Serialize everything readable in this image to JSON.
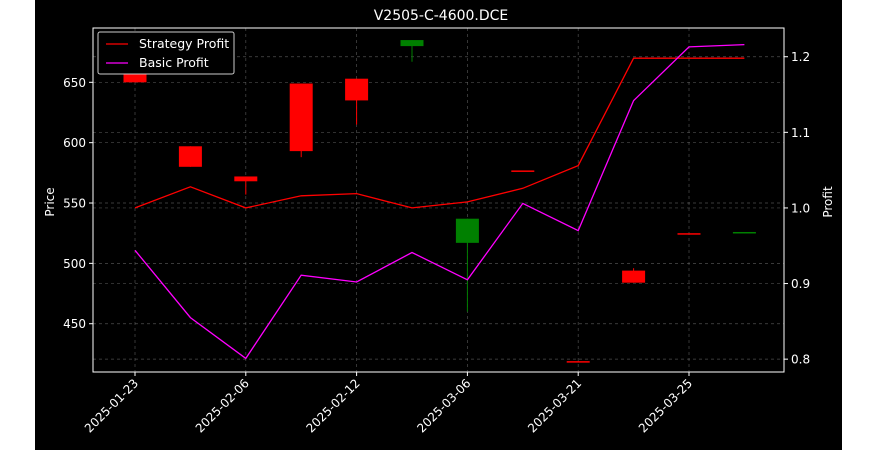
{
  "chart_data": {
    "type": "candlestick+line",
    "title": "V2505-C-4600.DCE",
    "ylabel": "Price",
    "y2label": "Profit",
    "ylim": [
      410,
      695
    ],
    "y2lim": [
      0.783,
      1.238
    ],
    "yticks": [
      450,
      500,
      550,
      600,
      650
    ],
    "y2ticks": [
      "0.8",
      "0.9",
      "1.0",
      "1.1",
      "1.2"
    ],
    "xtick_labels": [
      "2025-01-23",
      "2025-02-06",
      "2025-02-12",
      "2025-03-06",
      "2025-03-21",
      "2025-03-25"
    ],
    "grid": true,
    "legend_location": "upper left",
    "series": [
      {
        "name": "Strategy Profit",
        "color": "#ff0000",
        "axis": "right",
        "values": [
          1.0,
          1.028,
          1.0,
          1.016,
          1.019,
          1.0,
          1.008,
          1.026,
          1.056,
          1.198,
          1.198,
          1.198
        ]
      },
      {
        "name": "Basic Profit",
        "color": "#ff00ff",
        "axis": "right",
        "values": [
          0.944,
          0.855,
          0.801,
          0.911,
          0.902,
          0.941,
          0.905,
          1.006,
          0.97,
          1.142,
          1.213,
          1.216
        ]
      }
    ],
    "candles": [
      {
        "open": 658,
        "close": 650,
        "high": 658,
        "low": 650
      },
      {
        "open": 597,
        "close": 580,
        "high": 597,
        "low": 580
      },
      {
        "open": 572,
        "close": 568,
        "high": 572,
        "low": 557
      },
      {
        "open": 649,
        "close": 593,
        "high": 649,
        "low": 588
      },
      {
        "open": 653,
        "close": 635,
        "high": 653,
        "low": 615
      },
      {
        "open": 680,
        "close": 685,
        "high": 685,
        "low": 667
      },
      {
        "open": 517,
        "close": 537,
        "high": 537,
        "low": 460
      },
      {
        "open": 577,
        "close": 577,
        "high": 577,
        "low": 577
      },
      {
        "open": 419,
        "close": 418,
        "high": 419,
        "low": 418
      },
      {
        "open": 494,
        "close": 484,
        "high": 496,
        "low": 484
      },
      {
        "open": 525,
        "close": 525,
        "high": 525,
        "low": 525
      },
      {
        "open": 525,
        "close": 526,
        "high": 526,
        "low": 525
      }
    ]
  },
  "legend": [
    {
      "label": "Strategy Profit",
      "color": "#ff0000"
    },
    {
      "label": "Basic Profit",
      "color": "#ff00ff"
    }
  ],
  "colors": {
    "up": "#008000",
    "down": "#ff0000",
    "background": "#000000",
    "axes": "#ffffff",
    "grid": "#808080"
  }
}
